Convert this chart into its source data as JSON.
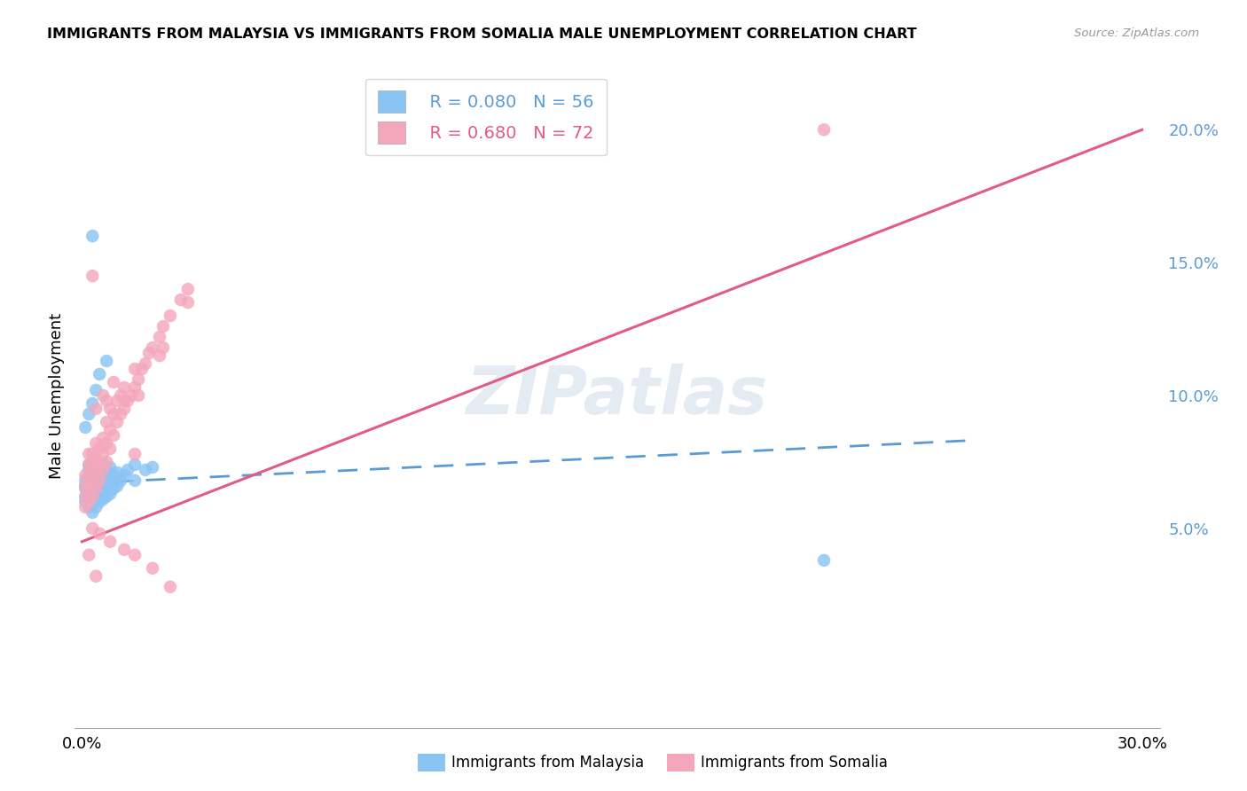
{
  "title": "IMMIGRANTS FROM MALAYSIA VS IMMIGRANTS FROM SOMALIA MALE UNEMPLOYMENT CORRELATION CHART",
  "source": "Source: ZipAtlas.com",
  "ylabel": "Male Unemployment",
  "xlim": [
    -0.002,
    0.305
  ],
  "ylim": [
    -0.025,
    0.225
  ],
  "malaysia_R": 0.08,
  "malaysia_N": 56,
  "somalia_R": 0.68,
  "somalia_N": 72,
  "malaysia_color": "#89C4F4",
  "somalia_color": "#F4A7BB",
  "malaysia_line_color": "#5B9BD5",
  "somalia_line_color": "#E05C85",
  "watermark": "ZIPatlas",
  "malaysia_line_x0": 0.0,
  "malaysia_line_y0": 0.067,
  "malaysia_line_x1": 0.25,
  "malaysia_line_y1": 0.083,
  "somalia_line_x0": 0.0,
  "somalia_line_y0": 0.045,
  "somalia_line_x1": 0.3,
  "somalia_line_y1": 0.2,
  "malaysia_scatter_x": [
    0.001,
    0.001,
    0.001,
    0.001,
    0.001,
    0.002,
    0.002,
    0.002,
    0.002,
    0.002,
    0.002,
    0.003,
    0.003,
    0.003,
    0.003,
    0.003,
    0.003,
    0.003,
    0.004,
    0.004,
    0.004,
    0.004,
    0.004,
    0.005,
    0.005,
    0.005,
    0.005,
    0.006,
    0.006,
    0.006,
    0.006,
    0.007,
    0.007,
    0.007,
    0.008,
    0.008,
    0.008,
    0.009,
    0.009,
    0.01,
    0.01,
    0.011,
    0.012,
    0.013,
    0.015,
    0.015,
    0.018,
    0.02,
    0.001,
    0.002,
    0.003,
    0.004,
    0.005,
    0.007,
    0.21,
    0.003
  ],
  "malaysia_scatter_y": [
    0.06,
    0.062,
    0.065,
    0.066,
    0.068,
    0.058,
    0.063,
    0.067,
    0.07,
    0.072,
    0.074,
    0.056,
    0.06,
    0.063,
    0.066,
    0.068,
    0.072,
    0.075,
    0.058,
    0.062,
    0.065,
    0.069,
    0.072,
    0.06,
    0.064,
    0.068,
    0.072,
    0.061,
    0.065,
    0.07,
    0.074,
    0.062,
    0.067,
    0.072,
    0.063,
    0.068,
    0.073,
    0.065,
    0.07,
    0.066,
    0.071,
    0.068,
    0.07,
    0.072,
    0.068,
    0.074,
    0.072,
    0.073,
    0.088,
    0.093,
    0.097,
    0.102,
    0.108,
    0.113,
    0.038,
    0.16
  ],
  "somalia_scatter_x": [
    0.001,
    0.001,
    0.001,
    0.001,
    0.002,
    0.002,
    0.002,
    0.002,
    0.002,
    0.003,
    0.003,
    0.003,
    0.003,
    0.004,
    0.004,
    0.004,
    0.004,
    0.005,
    0.005,
    0.005,
    0.006,
    0.006,
    0.006,
    0.007,
    0.007,
    0.007,
    0.008,
    0.008,
    0.008,
    0.009,
    0.009,
    0.01,
    0.01,
    0.011,
    0.011,
    0.012,
    0.012,
    0.013,
    0.014,
    0.015,
    0.015,
    0.016,
    0.017,
    0.018,
    0.019,
    0.02,
    0.022,
    0.023,
    0.025,
    0.028,
    0.03,
    0.003,
    0.005,
    0.008,
    0.012,
    0.015,
    0.02,
    0.025,
    0.004,
    0.006,
    0.009,
    0.012,
    0.016,
    0.022,
    0.003,
    0.007,
    0.015,
    0.023,
    0.03,
    0.21,
    0.002,
    0.004
  ],
  "somalia_scatter_y": [
    0.058,
    0.062,
    0.066,
    0.07,
    0.06,
    0.065,
    0.07,
    0.074,
    0.078,
    0.062,
    0.068,
    0.073,
    0.078,
    0.065,
    0.07,
    0.076,
    0.082,
    0.068,
    0.074,
    0.08,
    0.072,
    0.078,
    0.084,
    0.075,
    0.082,
    0.09,
    0.08,
    0.087,
    0.095,
    0.085,
    0.093,
    0.09,
    0.098,
    0.093,
    0.1,
    0.095,
    0.103,
    0.098,
    0.1,
    0.103,
    0.11,
    0.106,
    0.11,
    0.112,
    0.116,
    0.118,
    0.122,
    0.126,
    0.13,
    0.136,
    0.14,
    0.05,
    0.048,
    0.045,
    0.042,
    0.04,
    0.035,
    0.028,
    0.095,
    0.1,
    0.105,
    0.098,
    0.1,
    0.115,
    0.145,
    0.098,
    0.078,
    0.118,
    0.135,
    0.2,
    0.04,
    0.032
  ]
}
